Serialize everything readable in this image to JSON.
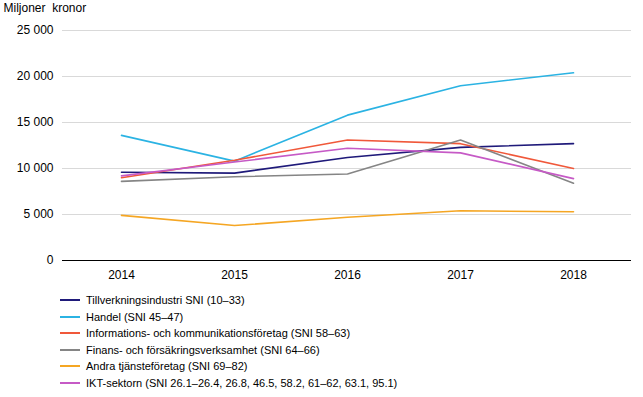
{
  "chart_data": {
    "type": "line",
    "y_label": "Miljoner  kronor",
    "categories": [
      "2014",
      "2015",
      "2016",
      "2017",
      "2018"
    ],
    "ylim": [
      0,
      25000
    ],
    "yticks": [
      0,
      {
        "value": 5000,
        "label": "5 000"
      },
      {
        "value": 10000,
        "label": "10 000"
      },
      {
        "value": 15000,
        "label": "15 000"
      },
      {
        "value": 20000,
        "label": "20 000"
      },
      {
        "value": 25000,
        "label": "25 000"
      }
    ],
    "grid": true,
    "legend": "bottom",
    "series": [
      {
        "name": "Tillverkningsindustri SNI (10–33)",
        "color": "#1f1a7a",
        "values": [
          9600,
          9500,
          11200,
          12300,
          12700
        ]
      },
      {
        "name": "Handel (SNI 45–47)",
        "color": "#2bb3e3",
        "values": [
          13600,
          10800,
          15800,
          19000,
          20400
        ]
      },
      {
        "name": "Informations- och kommunikationsföretag (SNI 58–63)",
        "color": "#f0583a",
        "values": [
          9000,
          10900,
          13100,
          12700,
          10000
        ]
      },
      {
        "name": "Finans- och försäkringsverksamhet (SNI 64–66)",
        "color": "#858585",
        "values": [
          8600,
          9100,
          9400,
          13100,
          8400
        ]
      },
      {
        "name": "Andra tjänsteföretag (SNI 69–82)",
        "color": "#f5a623",
        "values": [
          4900,
          3800,
          4700,
          5400,
          5300
        ]
      },
      {
        "name": "IKT-sektorn (SNI 26.1–26.4, 26.8, 46.5, 58.2, 61–62, 63.1, 95.1)",
        "color": "#c65ac6",
        "values": [
          9200,
          10700,
          12200,
          11700,
          8900
        ]
      }
    ]
  }
}
